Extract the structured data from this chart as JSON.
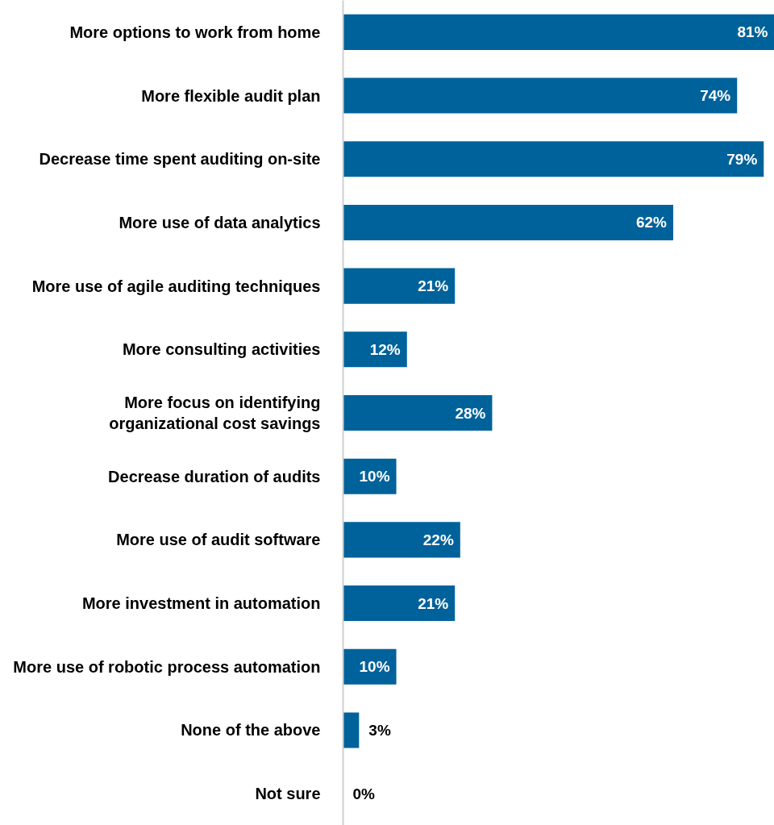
{
  "chart_data": {
    "type": "bar",
    "orientation": "horizontal",
    "categories": [
      "More options to work from home",
      "More flexible audit plan",
      "Decrease time spent auditing on-site",
      "More use of data analytics",
      "More use of agile auditing techniques",
      "More consulting activities",
      "More focus on identifying\norganizational cost savings",
      "Decrease duration of audits",
      "More use of audit software",
      "More investment in automation",
      "More use of robotic process automation",
      "None of the above",
      "Not sure"
    ],
    "values": [
      81,
      74,
      79,
      62,
      21,
      12,
      28,
      10,
      22,
      21,
      10,
      3,
      0
    ],
    "value_labels": [
      "81%",
      "74%",
      "79%",
      "62%",
      "21%",
      "12%",
      "28%",
      "10%",
      "22%",
      "21%",
      "10%",
      "3%",
      "0%"
    ],
    "color": "#00629b",
    "grid": false
  }
}
